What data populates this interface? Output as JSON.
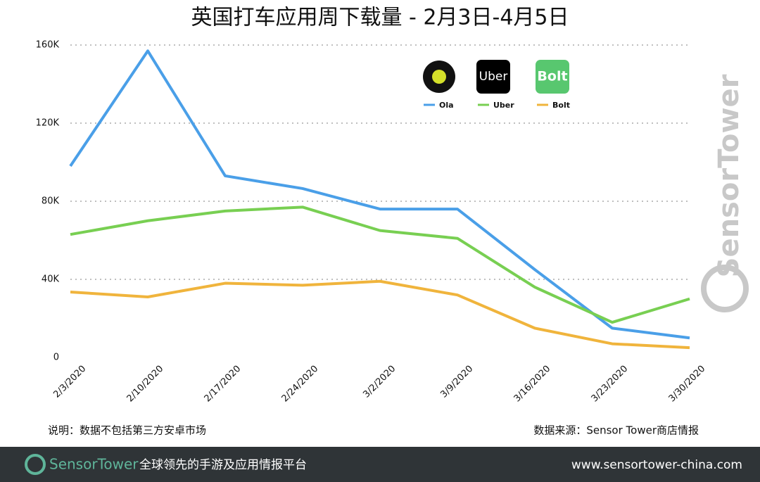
{
  "chart_data": {
    "type": "line",
    "title": "英国打车应用周下载量 - 2月3日-4月5日",
    "x": [
      "2/3/2020",
      "2/10/2020",
      "2/17/2020",
      "2/24/2020",
      "3/2/2020",
      "3/9/2020",
      "3/16/2020",
      "3/23/2020",
      "3/30/2020"
    ],
    "series": [
      {
        "name": "Ola",
        "color": "#4a9fe8",
        "values": [
          98000,
          157000,
          93000,
          86500,
          76000,
          76000,
          45000,
          15000,
          10000
        ]
      },
      {
        "name": "Uber",
        "color": "#78cf52",
        "values": [
          63000,
          70000,
          75000,
          77000,
          65000,
          61000,
          36000,
          18000,
          30000
        ]
      },
      {
        "name": "Bolt",
        "color": "#f0b43c",
        "values": [
          33500,
          31000,
          38000,
          37000,
          39000,
          32000,
          15000,
          7000,
          5000
        ]
      }
    ],
    "ylim": [
      0,
      160000
    ],
    "yticks": [
      0,
      {
        "value": 40000,
        "label": "40K"
      },
      {
        "value": 80000,
        "label": "80K"
      },
      {
        "value": 120000,
        "label": "120K"
      },
      {
        "value": 160000,
        "label": "160K"
      }
    ],
    "grid": true
  },
  "note": "说明：数据不包括第三方安卓市场",
  "source": "数据来源：Sensor Tower商店情报",
  "watermark": "SensorTower",
  "footer": {
    "brand": "SensorTower",
    "slogan": "全球领先的手游及应用情报平台",
    "url": "www.sensortower-china.com"
  }
}
